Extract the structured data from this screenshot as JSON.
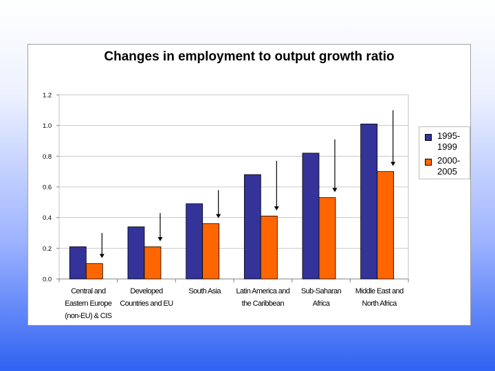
{
  "chart_data": {
    "type": "bar",
    "title": "Changes in employment to output growth ratio",
    "categories": [
      "Central and\nEastern Europe\n(non-EU) & CIS",
      "Developed\nCountries and EU",
      "South Asia",
      "Latin America and\nthe Caribbean",
      "Sub-Saharan\nAfrica",
      "Middle East and\nNorth Africa"
    ],
    "series": [
      {
        "name": "1995-\n1999",
        "color": "#333399",
        "values": [
          0.21,
          0.34,
          0.49,
          0.68,
          0.82,
          1.01
        ]
      },
      {
        "name": "2000-\n2005",
        "color": "#ff6600",
        "values": [
          0.1,
          0.21,
          0.36,
          0.41,
          0.53,
          0.7
        ]
      }
    ],
    "ylim": [
      0,
      1.2
    ],
    "yticks": [
      "0.0",
      "0.2",
      "0.4",
      "0.6",
      "0.8",
      "1.0",
      "1.2"
    ],
    "xlabel": "",
    "ylabel": "",
    "grid": true,
    "legend": "right",
    "annotations": "downward arrows above each category indicating decline"
  }
}
